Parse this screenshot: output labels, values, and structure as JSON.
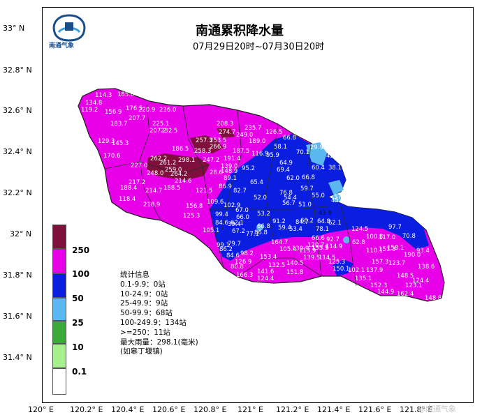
{
  "header": {
    "title": "南通累积降水量",
    "subtitle": "07月29日20时~07月30日20时",
    "logo_text": "南通气象"
  },
  "axes": {
    "y_labels": [
      "33° N",
      "32.8° N",
      "32.6° N",
      "32.4° N",
      "32.2° N",
      "32° N",
      "31.8° N",
      "31.6° N",
      "31.4° N"
    ],
    "x_labels": [
      "120° E",
      "120.2° E",
      "120.4° E",
      "120.6° E",
      "120.8° E",
      "121° E",
      "121.2° E",
      "121.4° E",
      "121.6° E",
      "121.8° E"
    ]
  },
  "legend": {
    "items": [
      {
        "label": "250",
        "color": "#7f0f3c"
      },
      {
        "label": "100",
        "color": "#e800e8"
      },
      {
        "label": "50",
        "color": "#0a1ee0"
      },
      {
        "label": "25",
        "color": "#5cb8f0"
      },
      {
        "label": "10",
        "color": "#3aaa3a"
      },
      {
        "label": "0.1",
        "color": "#a6f08e"
      }
    ],
    "bottom_color": "#ffffff"
  },
  "stats": {
    "heading": "统计信息",
    "lines": [
      "0.1-9.9：0站",
      "10-24.9：0站",
      "25-49.9：9站",
      "50-99.9：68站",
      "100-249.9：134站",
      ">=250：11站",
      "最大雨量：298.1(毫米)",
      "(如皋丁堰镇)"
    ]
  },
  "stations": [
    {
      "v": "298.1"
    },
    {
      "v": "262.2"
    },
    {
      "v": "261.2"
    },
    {
      "v": "259.0"
    },
    {
      "v": "248.0"
    },
    {
      "v": "264.2"
    },
    {
      "v": "257.3"
    },
    {
      "v": "253.5"
    },
    {
      "v": "266.9"
    },
    {
      "v": "274.7"
    },
    {
      "v": "258.3"
    },
    {
      "v": "220.9"
    },
    {
      "v": "236.0"
    },
    {
      "v": "207.7"
    },
    {
      "v": "225.1"
    },
    {
      "v": "207.2"
    },
    {
      "v": "232.5"
    },
    {
      "v": "208.3"
    },
    {
      "v": "235.7"
    },
    {
      "v": "249.0"
    },
    {
      "v": "186.5"
    },
    {
      "v": "247.2"
    },
    {
      "v": "191.4"
    },
    {
      "v": "227.0"
    },
    {
      "v": "217.2"
    },
    {
      "v": "188.4"
    },
    {
      "v": "214.7"
    },
    {
      "v": "188.5"
    },
    {
      "v": "214.6"
    },
    {
      "v": "121.5"
    },
    {
      "v": "148.9"
    },
    {
      "v": "139.0"
    },
    {
      "v": "187.5"
    },
    {
      "v": "126.5"
    },
    {
      "v": "189.0"
    },
    {
      "v": "218.9"
    },
    {
      "v": "118.4"
    },
    {
      "v": "170.6"
    },
    {
      "v": "129.3"
    },
    {
      "v": "145.3"
    },
    {
      "v": "156.9"
    },
    {
      "v": "183.7"
    },
    {
      "v": "134.8"
    },
    {
      "v": "114.3"
    },
    {
      "v": "185.0"
    },
    {
      "v": "119.2"
    },
    {
      "v": "176.5"
    },
    {
      "v": "109.6"
    },
    {
      "v": "156.8"
    },
    {
      "v": "102.9"
    },
    {
      "v": "99.4"
    },
    {
      "v": "67.0"
    },
    {
      "v": "66.0"
    },
    {
      "v": "86.9"
    },
    {
      "v": "82.7"
    },
    {
      "v": "65.4"
    },
    {
      "v": "52.0"
    },
    {
      "v": "53.2"
    },
    {
      "v": "89.1"
    },
    {
      "v": "95.2"
    },
    {
      "v": "116.9"
    },
    {
      "v": "95.9"
    },
    {
      "v": "58.1"
    },
    {
      "v": "66.8"
    },
    {
      "v": "70.1"
    },
    {
      "v": "29.9"
    },
    {
      "v": "42.6"
    },
    {
      "v": "38.1"
    },
    {
      "v": "60.4"
    },
    {
      "v": "64.9"
    },
    {
      "v": "69.4"
    },
    {
      "v": "62.0"
    },
    {
      "v": "66.8"
    },
    {
      "v": "76.8"
    },
    {
      "v": "59.7"
    },
    {
      "v": "55.0"
    },
    {
      "v": "56.7"
    },
    {
      "v": "51.0"
    },
    {
      "v": "60.2"
    },
    {
      "v": "65.9"
    },
    {
      "v": "45.5"
    },
    {
      "v": "43.9"
    },
    {
      "v": "64.8"
    },
    {
      "v": "62.1"
    },
    {
      "v": "78.1"
    },
    {
      "v": "91.2"
    },
    {
      "v": "59.4"
    },
    {
      "v": "53.4"
    },
    {
      "v": "84.7"
    },
    {
      "v": "66.6"
    },
    {
      "v": "92.7"
    },
    {
      "v": "124.5"
    },
    {
      "v": "97.7"
    },
    {
      "v": "70.8"
    },
    {
      "v": "93.4"
    },
    {
      "v": "62.8"
    },
    {
      "v": "117.0"
    },
    {
      "v": "100.8"
    },
    {
      "v": "110.1"
    },
    {
      "v": "151.3"
    },
    {
      "v": "158.1"
    },
    {
      "v": "190.0"
    },
    {
      "v": "123.7"
    },
    {
      "v": "157.3"
    },
    {
      "v": "138.6"
    },
    {
      "v": "137.9"
    },
    {
      "v": "135.1"
    },
    {
      "v": "152.3"
    },
    {
      "v": "148.5"
    },
    {
      "v": "124.4"
    },
    {
      "v": "123.1"
    },
    {
      "v": "162.4"
    },
    {
      "v": "144.9"
    },
    {
      "v": "148.8"
    },
    {
      "v": "125.3"
    },
    {
      "v": "150.1"
    },
    {
      "v": "155.1"
    },
    {
      "v": "114.9"
    },
    {
      "v": "102.1"
    },
    {
      "v": "79.7"
    },
    {
      "v": "99.1"
    },
    {
      "v": "86.2"
    },
    {
      "v": "84.6"
    },
    {
      "v": "98.2"
    },
    {
      "v": "80.8"
    },
    {
      "v": "126.9"
    },
    {
      "v": "141.6"
    },
    {
      "v": "166.3"
    },
    {
      "v": "124.4"
    },
    {
      "v": "153.4"
    },
    {
      "v": "132.5"
    },
    {
      "v": "140.5"
    },
    {
      "v": "151.8"
    },
    {
      "v": "164.7"
    },
    {
      "v": "105.4"
    },
    {
      "v": "139.9"
    },
    {
      "v": "133.9"
    },
    {
      "v": "120.7"
    },
    {
      "v": "113.9"
    },
    {
      "v": "139.5"
    },
    {
      "v": "114.5"
    },
    {
      "v": "125.3"
    },
    {
      "v": "105.1"
    },
    {
      "v": "84.6"
    },
    {
      "v": "62.1"
    },
    {
      "v": "67.2"
    },
    {
      "v": "77.1"
    },
    {
      "v": "86.8"
    },
    {
      "v": "97.8"
    },
    {
      "v": "57.3"
    },
    {
      "v": "54.4"
    },
    {
      "v": "66.8"
    },
    {
      "v": "39.4"
    },
    {
      "v": "67.2"
    },
    {
      "v": "28.6"
    }
  ],
  "watermark": "@南通气象"
}
